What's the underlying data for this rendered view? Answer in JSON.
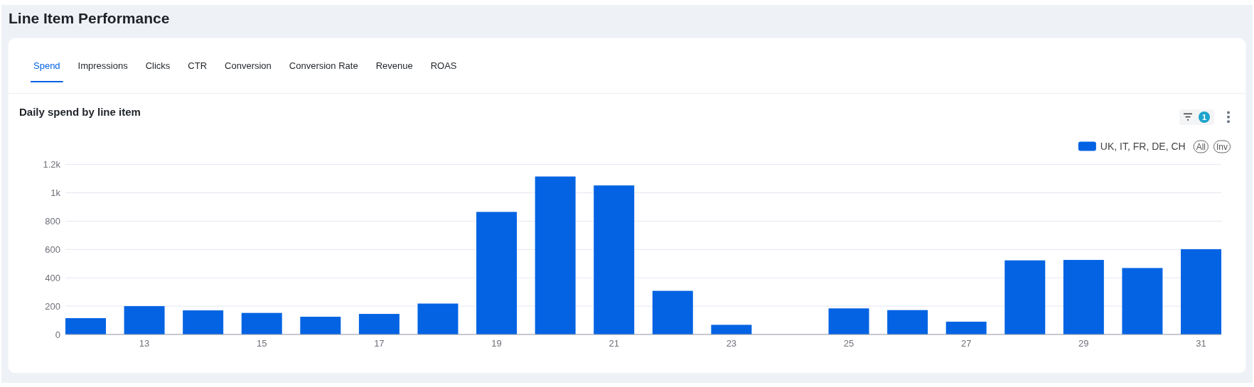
{
  "chart_data": {
    "type": "bar",
    "title": "Line Item Performance",
    "subtitle": "Daily spend by line item",
    "categories": [
      null,
      "13",
      null,
      "15",
      null,
      "17",
      null,
      "19",
      null,
      "21",
      null,
      "23",
      null,
      "25",
      null,
      "27",
      null,
      "29",
      null,
      "31"
    ],
    "series": [
      {
        "name": "UK, IT, FR, DE, CH",
        "color": "#0363e3",
        "values": [
          115,
          200,
          170,
          152,
          125,
          145,
          218,
          865,
          1115,
          1052,
          308,
          68,
          null,
          184,
          172,
          90,
          523,
          526,
          469,
          602
        ]
      }
    ],
    "ylim": [
      0,
      1200
    ],
    "yticks": [
      0,
      200,
      400,
      600,
      800,
      {
        "value": 1000,
        "label": "1k"
      },
      {
        "value": 1200,
        "label": "1.2k"
      }
    ],
    "grid": "y",
    "legend": "top right",
    "annotations": [
      "Spend",
      "Impressions",
      "Clicks",
      "CTR",
      "Conversion",
      "Conversion Rate",
      "Revenue",
      "ROAS",
      "1",
      "All",
      "Inv"
    ]
  }
}
